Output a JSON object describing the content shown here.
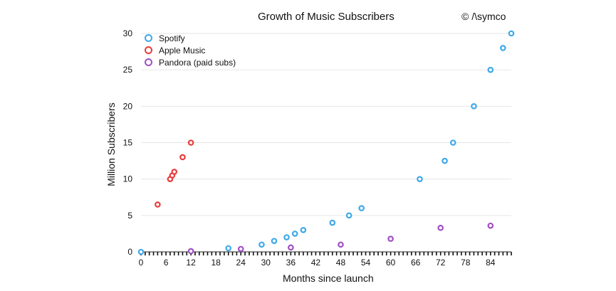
{
  "chart_data": {
    "type": "scatter",
    "title": "Growth of Music Subscribers",
    "credit": "© /\\symco",
    "xlabel": "Months since launch",
    "ylabel": "Million Subscribers",
    "xlim": [
      0,
      89
    ],
    "ylim": [
      0,
      30
    ],
    "x_ticks": [
      0,
      6,
      12,
      18,
      24,
      30,
      36,
      42,
      48,
      54,
      60,
      66,
      72,
      78,
      84
    ],
    "y_ticks": [
      0,
      5,
      10,
      15,
      20,
      25,
      30
    ],
    "grid": "horizontal",
    "legend_position": "top-left",
    "series": [
      {
        "name": "Spotify",
        "color": "#3fa9e8",
        "points": [
          [
            0,
            0
          ],
          [
            21,
            0.5
          ],
          [
            29,
            1
          ],
          [
            32,
            1.5
          ],
          [
            35,
            2
          ],
          [
            37,
            2.5
          ],
          [
            39,
            3
          ],
          [
            46,
            4
          ],
          [
            50,
            5
          ],
          [
            53,
            6
          ],
          [
            67,
            10
          ],
          [
            73,
            12.5
          ],
          [
            75,
            15
          ],
          [
            80,
            20
          ],
          [
            84,
            25
          ],
          [
            87,
            28
          ],
          [
            89,
            30
          ]
        ]
      },
      {
        "name": "Apple Music",
        "color": "#e83c3c",
        "points": [
          [
            4,
            6.5
          ],
          [
            7,
            10
          ],
          [
            7.5,
            10.5
          ],
          [
            8,
            11
          ],
          [
            10,
            13
          ],
          [
            12,
            15
          ]
        ]
      },
      {
        "name": "Pandora (paid subs)",
        "color": "#a04fc4",
        "points": [
          [
            12,
            0.1
          ],
          [
            24,
            0.4
          ],
          [
            36,
            0.6
          ],
          [
            48,
            1
          ],
          [
            60,
            1.8
          ],
          [
            72,
            3.3
          ],
          [
            84,
            3.6
          ]
        ]
      }
    ]
  }
}
